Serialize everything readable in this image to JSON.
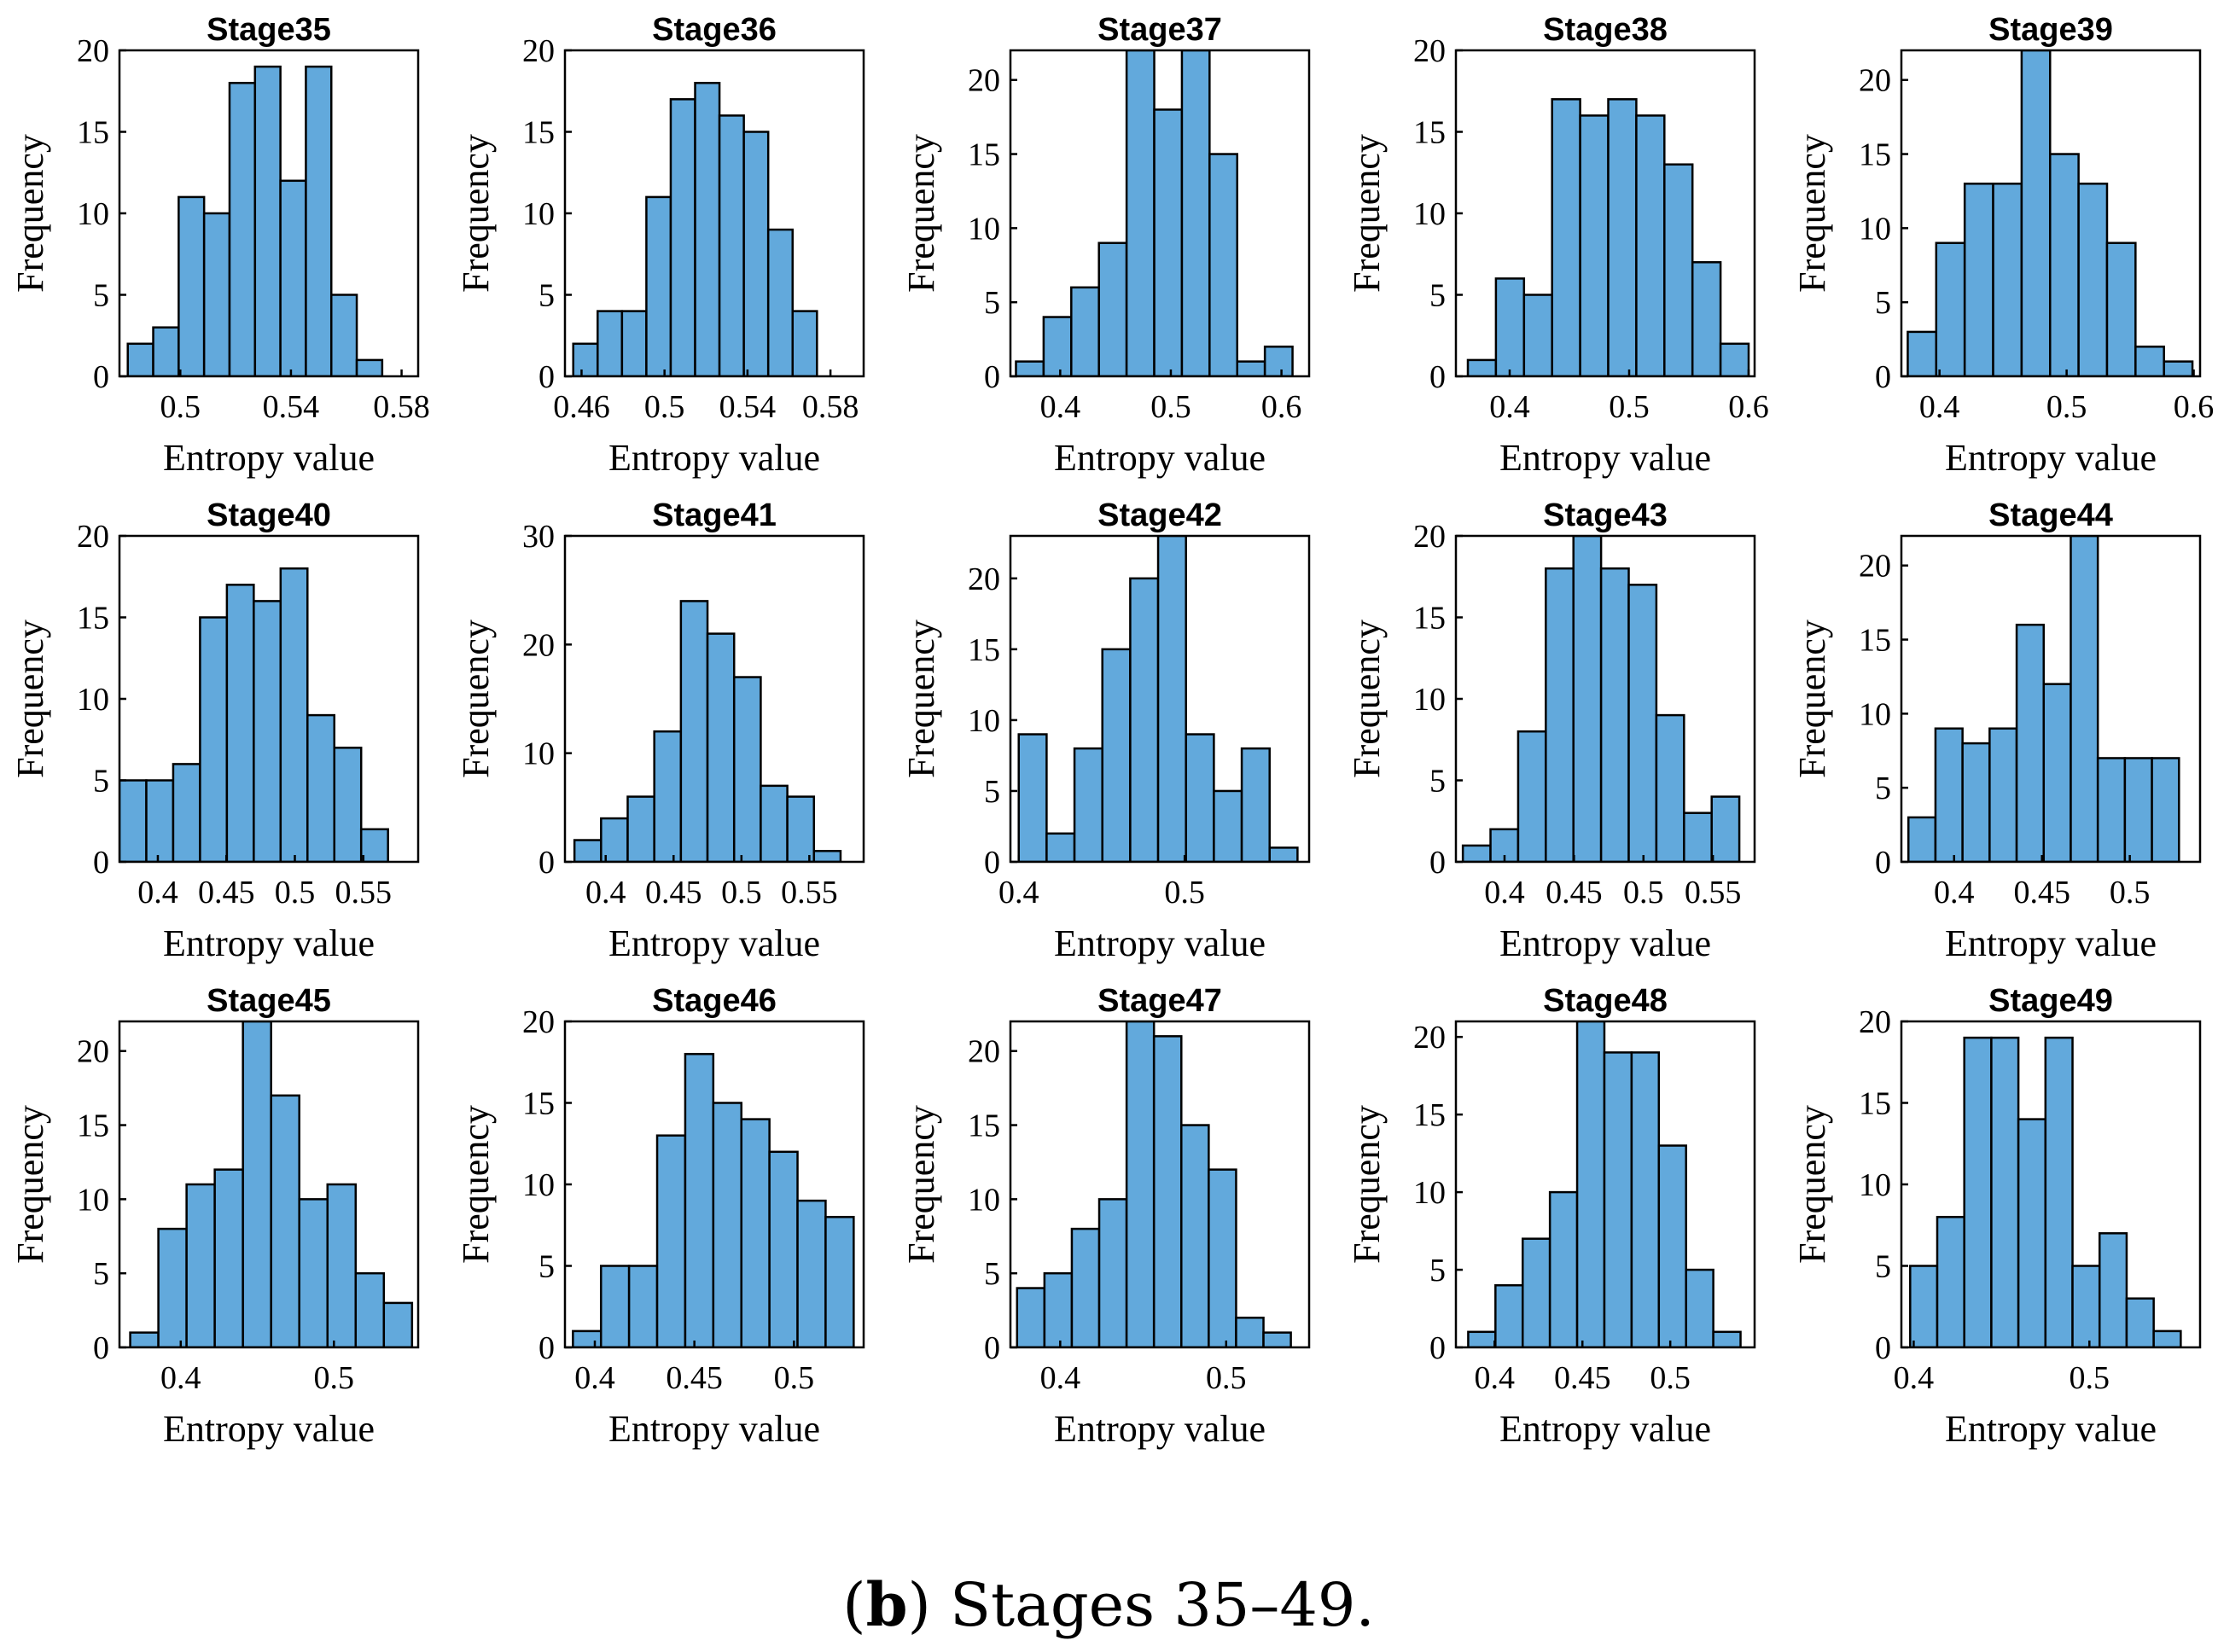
{
  "figure": {
    "caption_letter": "b",
    "caption_text": " Stages 35–49."
  },
  "chart_data": [
    {
      "type": "bar",
      "title": "Stage35",
      "xlabel": "Entropy value",
      "ylabel": "Frequency",
      "xlim": [
        0.478,
        0.586
      ],
      "ylim": [
        0,
        20
      ],
      "xticks": [
        0.5,
        0.54,
        0.58
      ],
      "xticklabels": [
        "0.5",
        "0.54",
        "0.58"
      ],
      "yticks": [
        0,
        5,
        10,
        15,
        20
      ],
      "yticklabels": [
        "0",
        "5",
        "10",
        "15",
        "20"
      ],
      "bin_start": 0.481,
      "bin_width": 0.0092,
      "values": [
        2,
        3,
        11,
        10,
        18,
        19,
        12,
        19,
        5,
        1
      ]
    },
    {
      "type": "bar",
      "title": "Stage36",
      "xlabel": "Entropy value",
      "ylabel": "Frequency",
      "xlim": [
        0.452,
        0.596
      ],
      "ylim": [
        0,
        20
      ],
      "xticks": [
        0.46,
        0.5,
        0.54,
        0.58
      ],
      "xticklabels": [
        "0.46",
        "0.5",
        "0.54",
        "0.58"
      ],
      "yticks": [
        0,
        5,
        10,
        15,
        20
      ],
      "yticklabels": [
        "0",
        "5",
        "10",
        "15",
        "20"
      ],
      "bin_start": 0.456,
      "bin_width": 0.01175,
      "values": [
        2,
        4,
        4,
        11,
        17,
        18,
        16,
        15,
        9,
        4
      ]
    },
    {
      "type": "bar",
      "title": "Stage37",
      "xlabel": "Entropy value",
      "ylabel": "Frequency",
      "xlim": [
        0.355,
        0.625
      ],
      "ylim": [
        0,
        22
      ],
      "xticks": [
        0.4,
        0.5,
        0.6
      ],
      "xticklabels": [
        "0.4",
        "0.5",
        "0.6"
      ],
      "yticks": [
        0,
        5,
        10,
        15,
        20
      ],
      "yticklabels": [
        "0",
        "5",
        "10",
        "15",
        "20"
      ],
      "bin_start": 0.36,
      "bin_width": 0.025,
      "values": [
        1,
        4,
        6,
        9,
        22,
        18,
        22,
        15,
        1,
        2
      ]
    },
    {
      "type": "bar",
      "title": "Stage38",
      "xlabel": "Entropy value",
      "ylabel": "Frequency",
      "xlim": [
        0.355,
        0.605
      ],
      "ylim": [
        0,
        20
      ],
      "xticks": [
        0.4,
        0.5,
        0.6
      ],
      "xticklabels": [
        "0.4",
        "0.5",
        "0.6"
      ],
      "yticks": [
        0,
        5,
        10,
        15,
        20
      ],
      "yticklabels": [
        "0",
        "5",
        "10",
        "15",
        "20"
      ],
      "bin_start": 0.365,
      "bin_width": 0.0235,
      "values": [
        1,
        6,
        5,
        17,
        16,
        17,
        16,
        13,
        7,
        2
      ]
    },
    {
      "type": "bar",
      "title": "Stage39",
      "xlabel": "Entropy value",
      "ylabel": "Frequency",
      "xlim": [
        0.37,
        0.605
      ],
      "ylim": [
        0,
        22
      ],
      "xticks": [
        0.4,
        0.5,
        0.6
      ],
      "xticklabels": [
        "0.4",
        "0.5",
        "0.6"
      ],
      "yticks": [
        0,
        5,
        10,
        15,
        20
      ],
      "yticklabels": [
        "0",
        "5",
        "10",
        "15",
        "20"
      ],
      "bin_start": 0.375,
      "bin_width": 0.0224,
      "values": [
        3,
        9,
        13,
        13,
        22,
        15,
        13,
        9,
        2,
        1
      ]
    },
    {
      "type": "bar",
      "title": "Stage40",
      "xlabel": "Entropy value",
      "ylabel": "Frequency",
      "xlim": [
        0.372,
        0.59
      ],
      "ylim": [
        0,
        20
      ],
      "xticks": [
        0.4,
        0.45,
        0.5,
        0.55
      ],
      "xticklabels": [
        "0.4",
        "0.45",
        "0.5",
        "0.55"
      ],
      "yticks": [
        0,
        5,
        10,
        15,
        20
      ],
      "yticklabels": [
        "0",
        "5",
        "10",
        "15",
        "20"
      ],
      "bin_start": 0.372,
      "bin_width": 0.0196,
      "values": [
        5,
        5,
        6,
        15,
        17,
        16,
        18,
        9,
        7,
        2
      ]
    },
    {
      "type": "bar",
      "title": "Stage41",
      "xlabel": "Entropy value",
      "ylabel": "Frequency",
      "xlim": [
        0.37,
        0.59
      ],
      "ylim": [
        0,
        30
      ],
      "xticks": [
        0.4,
        0.45,
        0.5,
        0.55
      ],
      "xticklabels": [
        "0.4",
        "0.45",
        "0.5",
        "0.55"
      ],
      "yticks": [
        0,
        10,
        20,
        30
      ],
      "yticklabels": [
        "0",
        "10",
        "20",
        "30"
      ],
      "bin_start": 0.377,
      "bin_width": 0.0196,
      "values": [
        2,
        4,
        6,
        12,
        24,
        21,
        17,
        7,
        6,
        1
      ]
    },
    {
      "type": "bar",
      "title": "Stage42",
      "xlabel": "Entropy value",
      "ylabel": "Frequency",
      "xlim": [
        0.395,
        0.575
      ],
      "ylim": [
        0,
        23
      ],
      "xticks": [
        0.4,
        0.5
      ],
      "xticklabels": [
        "0.4",
        "0.5"
      ],
      "yticks": [
        0,
        5,
        10,
        15,
        20
      ],
      "yticklabels": [
        "0",
        "5",
        "10",
        "15",
        "20"
      ],
      "bin_start": 0.4,
      "bin_width": 0.0168,
      "values": [
        9,
        2,
        8,
        15,
        20,
        23,
        9,
        5,
        8,
        1
      ]
    },
    {
      "type": "bar",
      "title": "Stage43",
      "xlabel": "Entropy value",
      "ylabel": "Frequency",
      "xlim": [
        0.365,
        0.58
      ],
      "ylim": [
        0,
        20
      ],
      "xticks": [
        0.4,
        0.45,
        0.5,
        0.55
      ],
      "xticklabels": [
        "0.4",
        "0.45",
        "0.5",
        "0.55"
      ],
      "yticks": [
        0,
        5,
        10,
        15,
        20
      ],
      "yticklabels": [
        "0",
        "5",
        "10",
        "15",
        "20"
      ],
      "bin_start": 0.37,
      "bin_width": 0.0199,
      "values": [
        1,
        2,
        8,
        18,
        20,
        18,
        17,
        9,
        3,
        4
      ]
    },
    {
      "type": "bar",
      "title": "Stage44",
      "xlabel": "Entropy value",
      "ylabel": "Frequency",
      "xlim": [
        0.37,
        0.54
      ],
      "ylim": [
        0,
        22
      ],
      "xticks": [
        0.4,
        0.45,
        0.5
      ],
      "xticklabels": [
        "0.4",
        "0.45",
        "0.5"
      ],
      "yticks": [
        0,
        5,
        10,
        15,
        20
      ],
      "yticklabels": [
        "0",
        "5",
        "10",
        "15",
        "20"
      ],
      "bin_start": 0.374,
      "bin_width": 0.0154,
      "values": [
        3,
        9,
        8,
        9,
        16,
        12,
        22,
        7,
        7,
        7
      ]
    },
    {
      "type": "bar",
      "title": "Stage45",
      "xlabel": "Entropy value",
      "ylabel": "Frequency",
      "xlim": [
        0.36,
        0.555
      ],
      "ylim": [
        0,
        22
      ],
      "xticks": [
        0.4,
        0.5
      ],
      "xticklabels": [
        "0.4",
        "0.5"
      ],
      "yticks": [
        0,
        5,
        10,
        15,
        20
      ],
      "yticklabels": [
        "0",
        "5",
        "10",
        "15",
        "20"
      ],
      "bin_start": 0.367,
      "bin_width": 0.0184,
      "values": [
        1,
        8,
        11,
        12,
        22,
        17,
        10,
        11,
        5,
        3
      ]
    },
    {
      "type": "bar",
      "title": "Stage46",
      "xlabel": "Entropy value",
      "ylabel": "Frequency",
      "xlim": [
        0.385,
        0.535
      ],
      "ylim": [
        0,
        20
      ],
      "xticks": [
        0.4,
        0.45,
        0.5
      ],
      "xticklabels": [
        "0.4",
        "0.45",
        "0.5"
      ],
      "yticks": [
        0,
        5,
        10,
        15,
        20
      ],
      "yticklabels": [
        "0",
        "5",
        "10",
        "15",
        "20"
      ],
      "bin_start": 0.389,
      "bin_width": 0.0141,
      "values": [
        1,
        5,
        5,
        13,
        18,
        15,
        14,
        12,
        9,
        8
      ]
    },
    {
      "type": "bar",
      "title": "Stage47",
      "xlabel": "Entropy value",
      "ylabel": "Frequency",
      "xlim": [
        0.37,
        0.55
      ],
      "ylim": [
        0,
        22
      ],
      "xticks": [
        0.4,
        0.5
      ],
      "xticklabels": [
        "0.4",
        "0.5"
      ],
      "yticks": [
        0,
        5,
        10,
        15,
        20
      ],
      "yticklabels": [
        "0",
        "5",
        "10",
        "15",
        "20"
      ],
      "bin_start": 0.374,
      "bin_width": 0.0165,
      "values": [
        4,
        5,
        8,
        10,
        22,
        21,
        15,
        12,
        2,
        1
      ]
    },
    {
      "type": "bar",
      "title": "Stage48",
      "xlabel": "Entropy value",
      "ylabel": "Frequency",
      "xlim": [
        0.378,
        0.548
      ],
      "ylim": [
        0,
        21
      ],
      "xticks": [
        0.4,
        0.45,
        0.5
      ],
      "xticklabels": [
        "0.4",
        "0.45",
        "0.5"
      ],
      "yticks": [
        0,
        5,
        10,
        15,
        20
      ],
      "yticklabels": [
        "0",
        "5",
        "10",
        "15",
        "20"
      ],
      "bin_start": 0.385,
      "bin_width": 0.0155,
      "values": [
        1,
        4,
        7,
        10,
        21,
        19,
        19,
        13,
        5,
        1
      ]
    },
    {
      "type": "bar",
      "title": "Stage49",
      "xlabel": "Entropy value",
      "ylabel": "Frequency",
      "xlim": [
        0.393,
        0.563
      ],
      "ylim": [
        0,
        20
      ],
      "xticks": [
        0.4,
        0.5
      ],
      "xticklabels": [
        "0.4",
        "0.5"
      ],
      "yticks": [
        0,
        5,
        10,
        15,
        20
      ],
      "yticklabels": [
        "0",
        "5",
        "10",
        "15",
        "20"
      ],
      "bin_start": 0.398,
      "bin_width": 0.0154,
      "values": [
        5,
        8,
        19,
        19,
        14,
        19,
        5,
        7,
        3,
        1
      ]
    }
  ]
}
